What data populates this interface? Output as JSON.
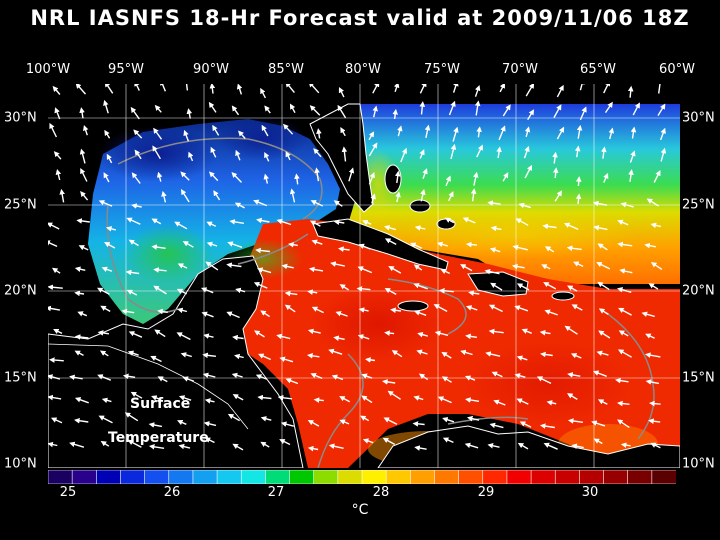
{
  "title": "NRL IASNFS  18-Hr Forecast valid at 2009/11/06 18Z",
  "longitude_labels": [
    "100°W",
    "95°W",
    "90°W",
    "85°W",
    "80°W",
    "75°W",
    "70°W",
    "65°W",
    "60°W"
  ],
  "latitude_labels": [
    "30°N",
    "25°N",
    "20°N",
    "15°N",
    "10°N"
  ],
  "map_overlay": {
    "line1": "Surface",
    "line2": "Temperature"
  },
  "colorbar": {
    "ticks": [
      "25",
      "26",
      "27",
      "28",
      "29",
      "30"
    ],
    "unit": "°C",
    "colors": [
      "#1a0060",
      "#28008c",
      "#0000b4",
      "#0a28dc",
      "#1450f0",
      "#1478f0",
      "#14a0f0",
      "#14c8f0",
      "#14e6e6",
      "#00dc78",
      "#00c800",
      "#8cdc00",
      "#dcdc00",
      "#fff000",
      "#ffc800",
      "#ffa000",
      "#ff7800",
      "#ff5000",
      "#ff2800",
      "#f00000",
      "#dc0000",
      "#c80000",
      "#b40000",
      "#960000",
      "#780000",
      "#5a0000"
    ]
  },
  "colors": {
    "background": "#000000",
    "land": "#000000",
    "coastline": "#ffffff",
    "bathymetry_contour": "#8a8a8a",
    "grid": "#ffffff",
    "wind_arrows": "#ffffff"
  }
}
